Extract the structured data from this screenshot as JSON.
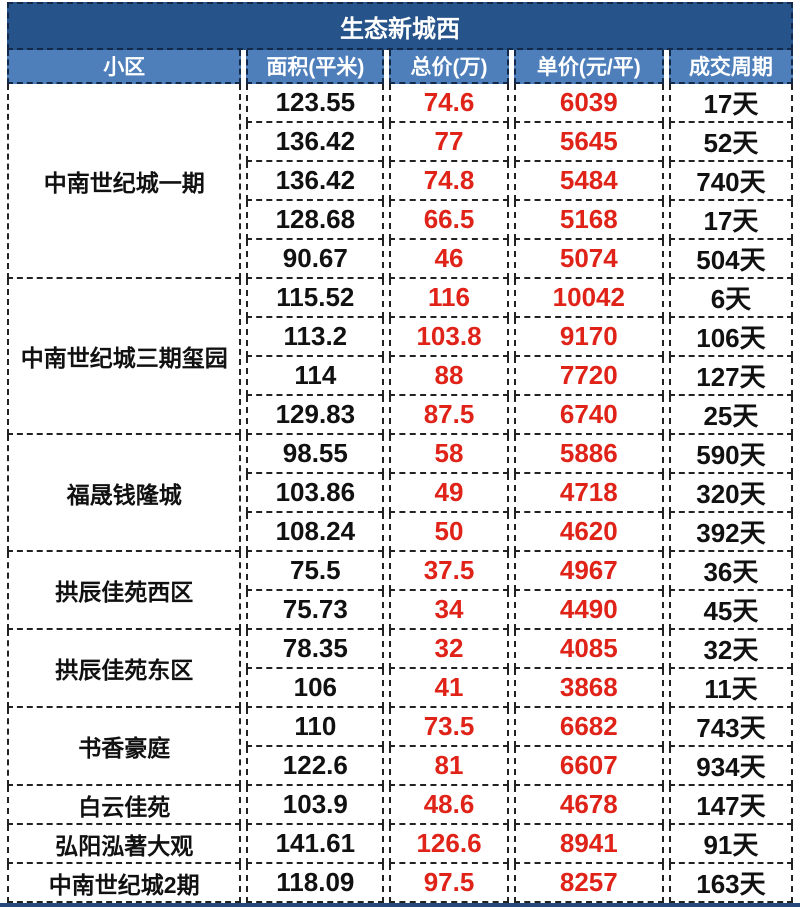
{
  "colors": {
    "title_bg": "#265389",
    "header_bg": "#4f7fba",
    "header_border": "#13294a",
    "cell_border": "#222222",
    "price_red": "#e02318",
    "text_black": "#111111",
    "bottom_frame": "#27487a"
  },
  "chart_data": {
    "type": "table",
    "title": "生态新城西",
    "columns": [
      "小区",
      "面积(平米)",
      "总价(万)",
      "单价(元/平)",
      "成交周期"
    ],
    "groups": [
      {
        "name": "中南世纪城一期",
        "rows": [
          [
            "123.55",
            "74.6",
            "6039",
            "17天"
          ],
          [
            "136.42",
            "77",
            "5645",
            "52天"
          ],
          [
            "136.42",
            "74.8",
            "5484",
            "740天"
          ],
          [
            "128.68",
            "66.5",
            "5168",
            "17天"
          ],
          [
            "90.67",
            "46",
            "5074",
            "504天"
          ]
        ]
      },
      {
        "name": "中南世纪城三期玺园",
        "rows": [
          [
            "115.52",
            "116",
            "10042",
            "6天"
          ],
          [
            "113.2",
            "103.8",
            "9170",
            "106天"
          ],
          [
            "114",
            "88",
            "7720",
            "127天"
          ],
          [
            "129.83",
            "87.5",
            "6740",
            "25天"
          ]
        ]
      },
      {
        "name": "福晟钱隆城",
        "rows": [
          [
            "98.55",
            "58",
            "5886",
            "590天"
          ],
          [
            "103.86",
            "49",
            "4718",
            "320天"
          ],
          [
            "108.24",
            "50",
            "4620",
            "392天"
          ]
        ]
      },
      {
        "name": "拱辰佳苑西区",
        "rows": [
          [
            "75.5",
            "37.5",
            "4967",
            "36天"
          ],
          [
            "75.73",
            "34",
            "4490",
            "45天"
          ]
        ]
      },
      {
        "name": "拱辰佳苑东区",
        "rows": [
          [
            "78.35",
            "32",
            "4085",
            "32天"
          ],
          [
            "106",
            "41",
            "3868",
            "11天"
          ]
        ]
      },
      {
        "name": "书香豪庭",
        "rows": [
          [
            "110",
            "73.5",
            "6682",
            "743天"
          ],
          [
            "122.6",
            "81",
            "6607",
            "934天"
          ]
        ]
      },
      {
        "name": "白云佳苑",
        "rows": [
          [
            "103.9",
            "48.6",
            "4678",
            "147天"
          ]
        ]
      },
      {
        "name": "弘阳泓著大观",
        "rows": [
          [
            "141.61",
            "126.6",
            "8941",
            "91天"
          ]
        ]
      },
      {
        "name": "中南世纪城2期",
        "rows": [
          [
            "118.09",
            "97.5",
            "8257",
            "163天"
          ]
        ]
      }
    ]
  }
}
